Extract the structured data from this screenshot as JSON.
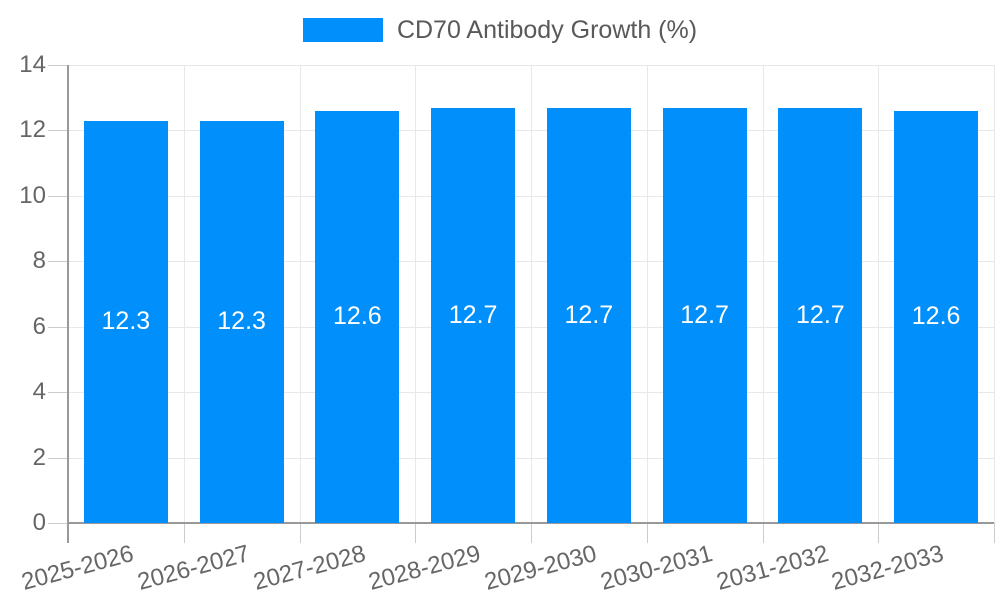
{
  "legend": {
    "label": "CD70 Antibody Growth (%)",
    "swatch_color": "#008FFB"
  },
  "chart_data": {
    "type": "bar",
    "title": "CD70 Antibody Growth (%)",
    "xlabel": "",
    "ylabel": "",
    "categories": [
      "2025-2026",
      "2026-2027",
      "2027-2028",
      "2028-2029",
      "2029-2030",
      "2030-2031",
      "2031-2032",
      "2032-2033"
    ],
    "series": [
      {
        "name": "CD70 Antibody Growth (%)",
        "color": "#008FFB",
        "values": [
          12.3,
          12.3,
          12.6,
          12.7,
          12.7,
          12.7,
          12.7,
          12.6
        ]
      }
    ],
    "value_labels": [
      "12.3",
      "12.3",
      "12.6",
      "12.7",
      "12.7",
      "12.7",
      "12.7",
      "12.6"
    ],
    "ylim": [
      0,
      14
    ],
    "yticks": [
      0,
      2,
      4,
      6,
      8,
      10,
      12,
      14
    ],
    "ytick_labels": [
      "0",
      "2",
      "4",
      "6",
      "8",
      "10",
      "12",
      "14"
    ],
    "grid": true,
    "legend_position": "top",
    "x_label_rotation_deg": -15,
    "colors": {
      "bar": "#008FFB",
      "grid": "#e8e8e8",
      "axis": "#999999",
      "tick": "#cccccc",
      "text": "#666666",
      "legend_text": "#595959",
      "value_text": "#ffffff",
      "background": "#ffffff"
    }
  }
}
